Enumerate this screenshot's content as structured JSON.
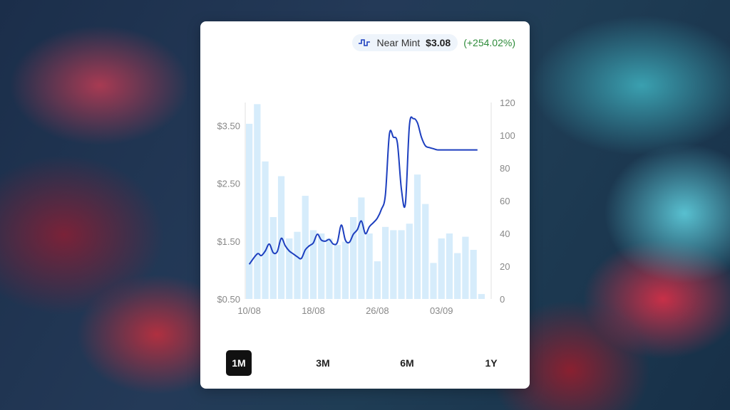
{
  "summary": {
    "condition": "Near Mint",
    "price": "$3.08",
    "change": "(+254.02%)",
    "icon": "price-history-icon"
  },
  "colors": {
    "line": "#1d3fbf",
    "bar": "#d6ecfb",
    "change_positive": "#2e8b3a",
    "active_range_bg": "#111111"
  },
  "ranges": [
    {
      "label": "1M",
      "active": true
    },
    {
      "label": "3M",
      "active": false
    },
    {
      "label": "6M",
      "active": false
    },
    {
      "label": "1Y",
      "active": false
    }
  ],
  "chart_data": {
    "type": "bar+line",
    "title": "",
    "x_ticks": [
      "10/08",
      "18/08",
      "26/08",
      "03/09"
    ],
    "y_left": {
      "ticks": [
        "$0.50",
        "$1.50",
        "$2.50",
        "$3.50"
      ],
      "range": [
        0.5,
        3.9
      ],
      "tick_values": [
        0.5,
        1.5,
        2.5,
        3.5
      ]
    },
    "y_right": {
      "ticks": [
        "0",
        "20",
        "40",
        "60",
        "80",
        "100",
        "120"
      ],
      "range": [
        0,
        120
      ],
      "tick_values": [
        0,
        20,
        40,
        60,
        80,
        100,
        120
      ]
    },
    "grid": false,
    "bar_series": {
      "axis": "right",
      "values": [
        107,
        119,
        84,
        50,
        75,
        37,
        41,
        63,
        42,
        40,
        37,
        33,
        35,
        50,
        62,
        40,
        23,
        44,
        42,
        42,
        46,
        76,
        58,
        22,
        37,
        40,
        28,
        38,
        30,
        3
      ]
    },
    "line_series": {
      "axis": "left",
      "x": [
        0,
        1,
        1.5,
        2,
        2.5,
        3,
        3.5,
        4,
        4.5,
        5,
        5.5,
        6,
        6.5,
        7,
        7.5,
        8,
        8.5,
        9,
        9.5,
        10,
        10.5,
        11,
        11.5,
        12,
        12.5,
        13,
        13.5,
        14,
        14.5,
        15,
        15.5,
        16,
        16.5,
        17,
        17.5,
        18,
        18.5,
        19,
        19.5,
        20,
        20.5,
        21,
        21.5,
        22,
        22.5,
        23,
        23.5,
        24,
        24.5,
        25,
        25.5,
        26,
        26.5,
        27,
        27.5,
        28,
        28.5
      ],
      "values": [
        1.1,
        1.28,
        1.25,
        1.33,
        1.45,
        1.3,
        1.32,
        1.55,
        1.42,
        1.33,
        1.28,
        1.23,
        1.2,
        1.35,
        1.42,
        1.47,
        1.62,
        1.52,
        1.5,
        1.53,
        1.45,
        1.48,
        1.78,
        1.52,
        1.48,
        1.62,
        1.7,
        1.85,
        1.63,
        1.75,
        1.82,
        1.9,
        2.05,
        2.3,
        3.35,
        3.3,
        3.2,
        2.4,
        2.15,
        3.5,
        3.62,
        3.55,
        3.3,
        3.15,
        3.12,
        3.1,
        3.08,
        3.08,
        3.08,
        3.08,
        3.08,
        3.08,
        3.08,
        3.08,
        3.08,
        3.08,
        3.08
      ]
    }
  }
}
